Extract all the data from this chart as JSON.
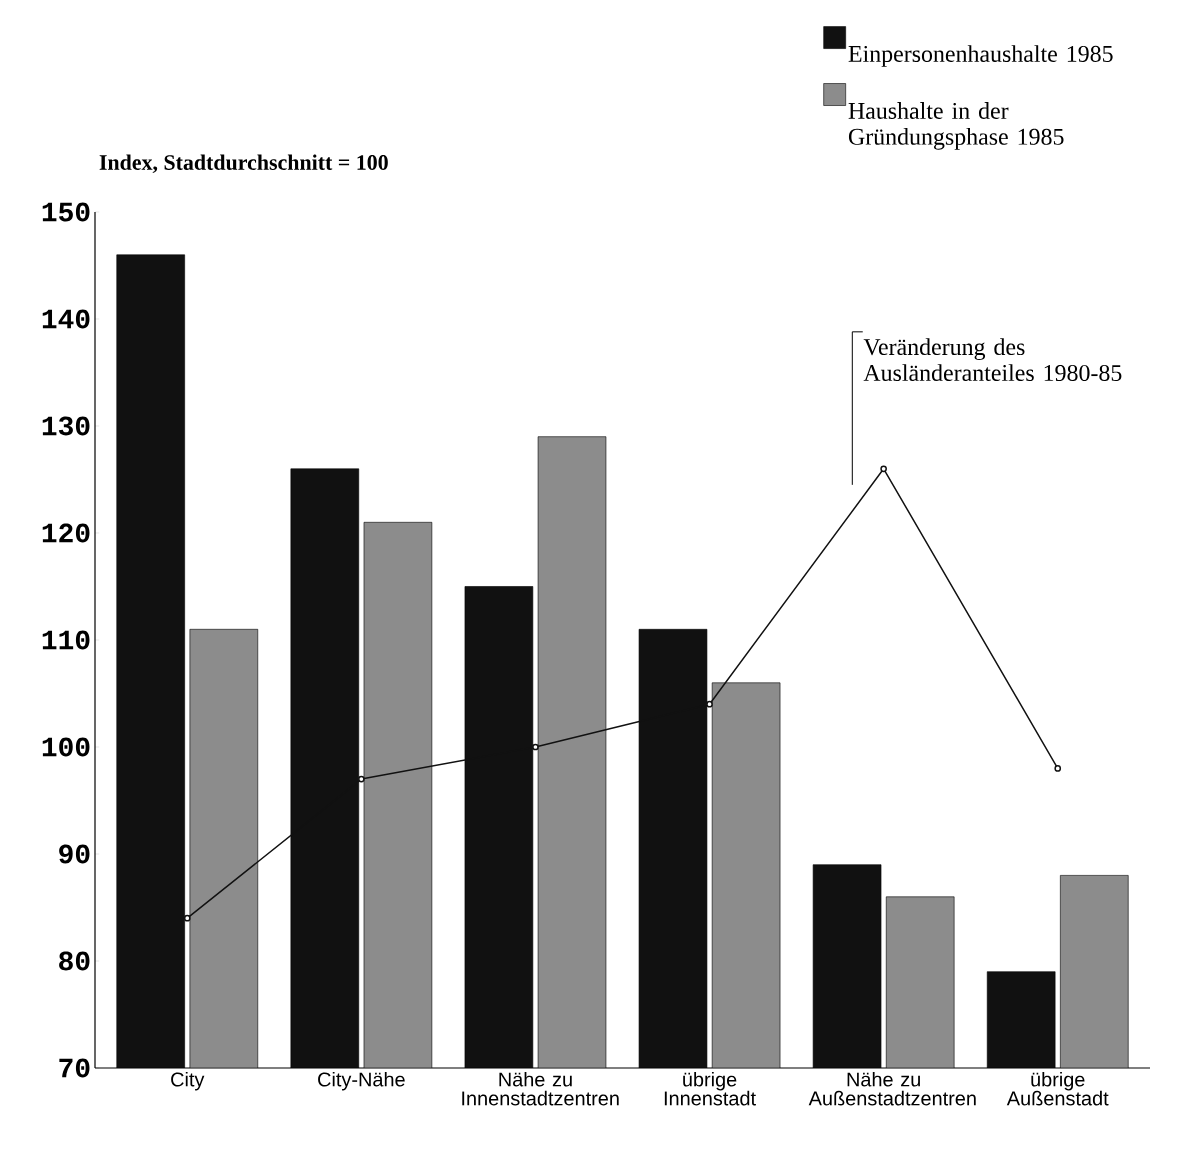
{
  "chart_data": {
    "type": "bar",
    "ylabel": "Index, Stadtdurchschnitt = 100",
    "categories": [
      "City",
      "City-Nähe",
      "Nähe zu Innenstadtzentren",
      "übrige Innenstadt",
      "Nähe zu Außenstadtzentren",
      "übrige Außenstadt"
    ],
    "series": [
      {
        "name": "Einpersonenhaushalte 1985",
        "color": "#111111",
        "values": [
          146,
          126,
          115,
          111,
          89,
          79
        ]
      },
      {
        "name": "Haushalte in der Gründungsphase 1985",
        "color": "#8c8c8c",
        "values": [
          111,
          121,
          129,
          106,
          86,
          88
        ]
      },
      {
        "name": "Veränderung des Ausländeranteiles 1980-85",
        "type": "line",
        "color": "#111111",
        "marker": "circle",
        "values": [
          84,
          97,
          100,
          104,
          126,
          98
        ]
      }
    ],
    "ylim": [
      70,
      150
    ],
    "yticks": [
      70,
      80,
      90,
      100,
      110,
      120,
      130,
      140,
      150
    ],
    "legend": "top right",
    "grid": false
  }
}
